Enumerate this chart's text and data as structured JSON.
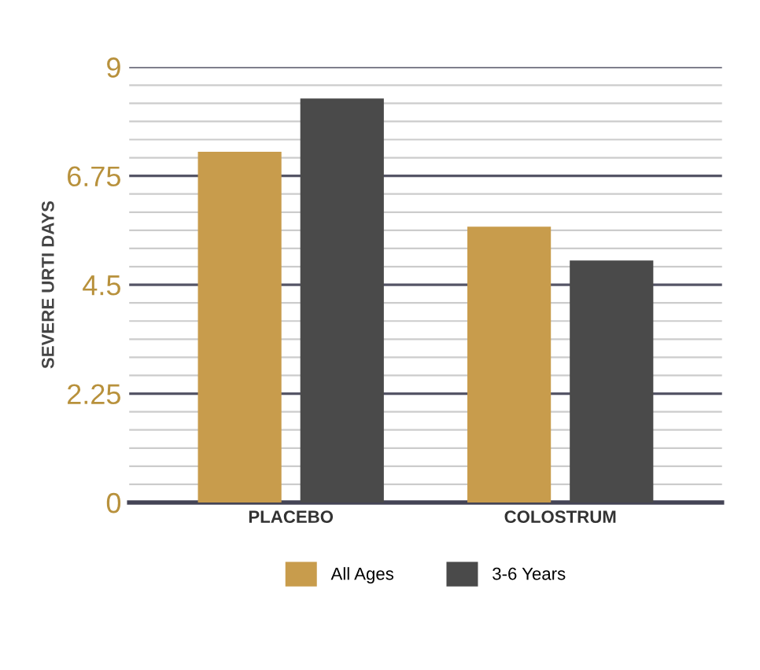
{
  "chart_data": {
    "type": "bar",
    "ylabel": "SEVERE URTI DAYS",
    "categories": [
      "PLACEBO",
      "COLOSTRUM"
    ],
    "series": [
      {
        "name": "All Ages",
        "color": "#c89c4c",
        "values": [
          7.25,
          5.7
        ]
      },
      {
        "name": "3-6 Years",
        "color": "#4a4a4a",
        "values": [
          8.35,
          5.0
        ]
      }
    ],
    "ylim": [
      0,
      9
    ],
    "yticks": [
      0,
      {
        "value": 0.375,
        "label": null
      },
      {
        "value": 0.75,
        "label": null
      },
      {
        "value": 1.125,
        "label": null
      },
      {
        "value": 1.5,
        "label": null
      },
      {
        "value": 1.875,
        "label": null
      },
      2.25,
      {
        "value": 2.625,
        "label": null
      },
      {
        "value": 3.0,
        "label": null
      },
      {
        "value": 3.375,
        "label": null
      },
      {
        "value": 3.75,
        "label": null
      },
      {
        "value": 4.125,
        "label": null
      },
      4.5,
      {
        "value": 4.875,
        "label": null
      },
      {
        "value": 5.25,
        "label": null
      },
      {
        "value": 5.625,
        "label": null
      },
      {
        "value": 6.0,
        "label": null
      },
      {
        "value": 6.375,
        "label": null
      },
      6.75,
      {
        "value": 7.125,
        "label": null
      },
      {
        "value": 7.5,
        "label": null
      },
      {
        "value": 7.875,
        "label": null
      },
      {
        "value": 8.25,
        "label": null
      },
      {
        "value": 8.625,
        "label": null
      },
      9
    ],
    "grid": "y",
    "legend": "bottom"
  }
}
